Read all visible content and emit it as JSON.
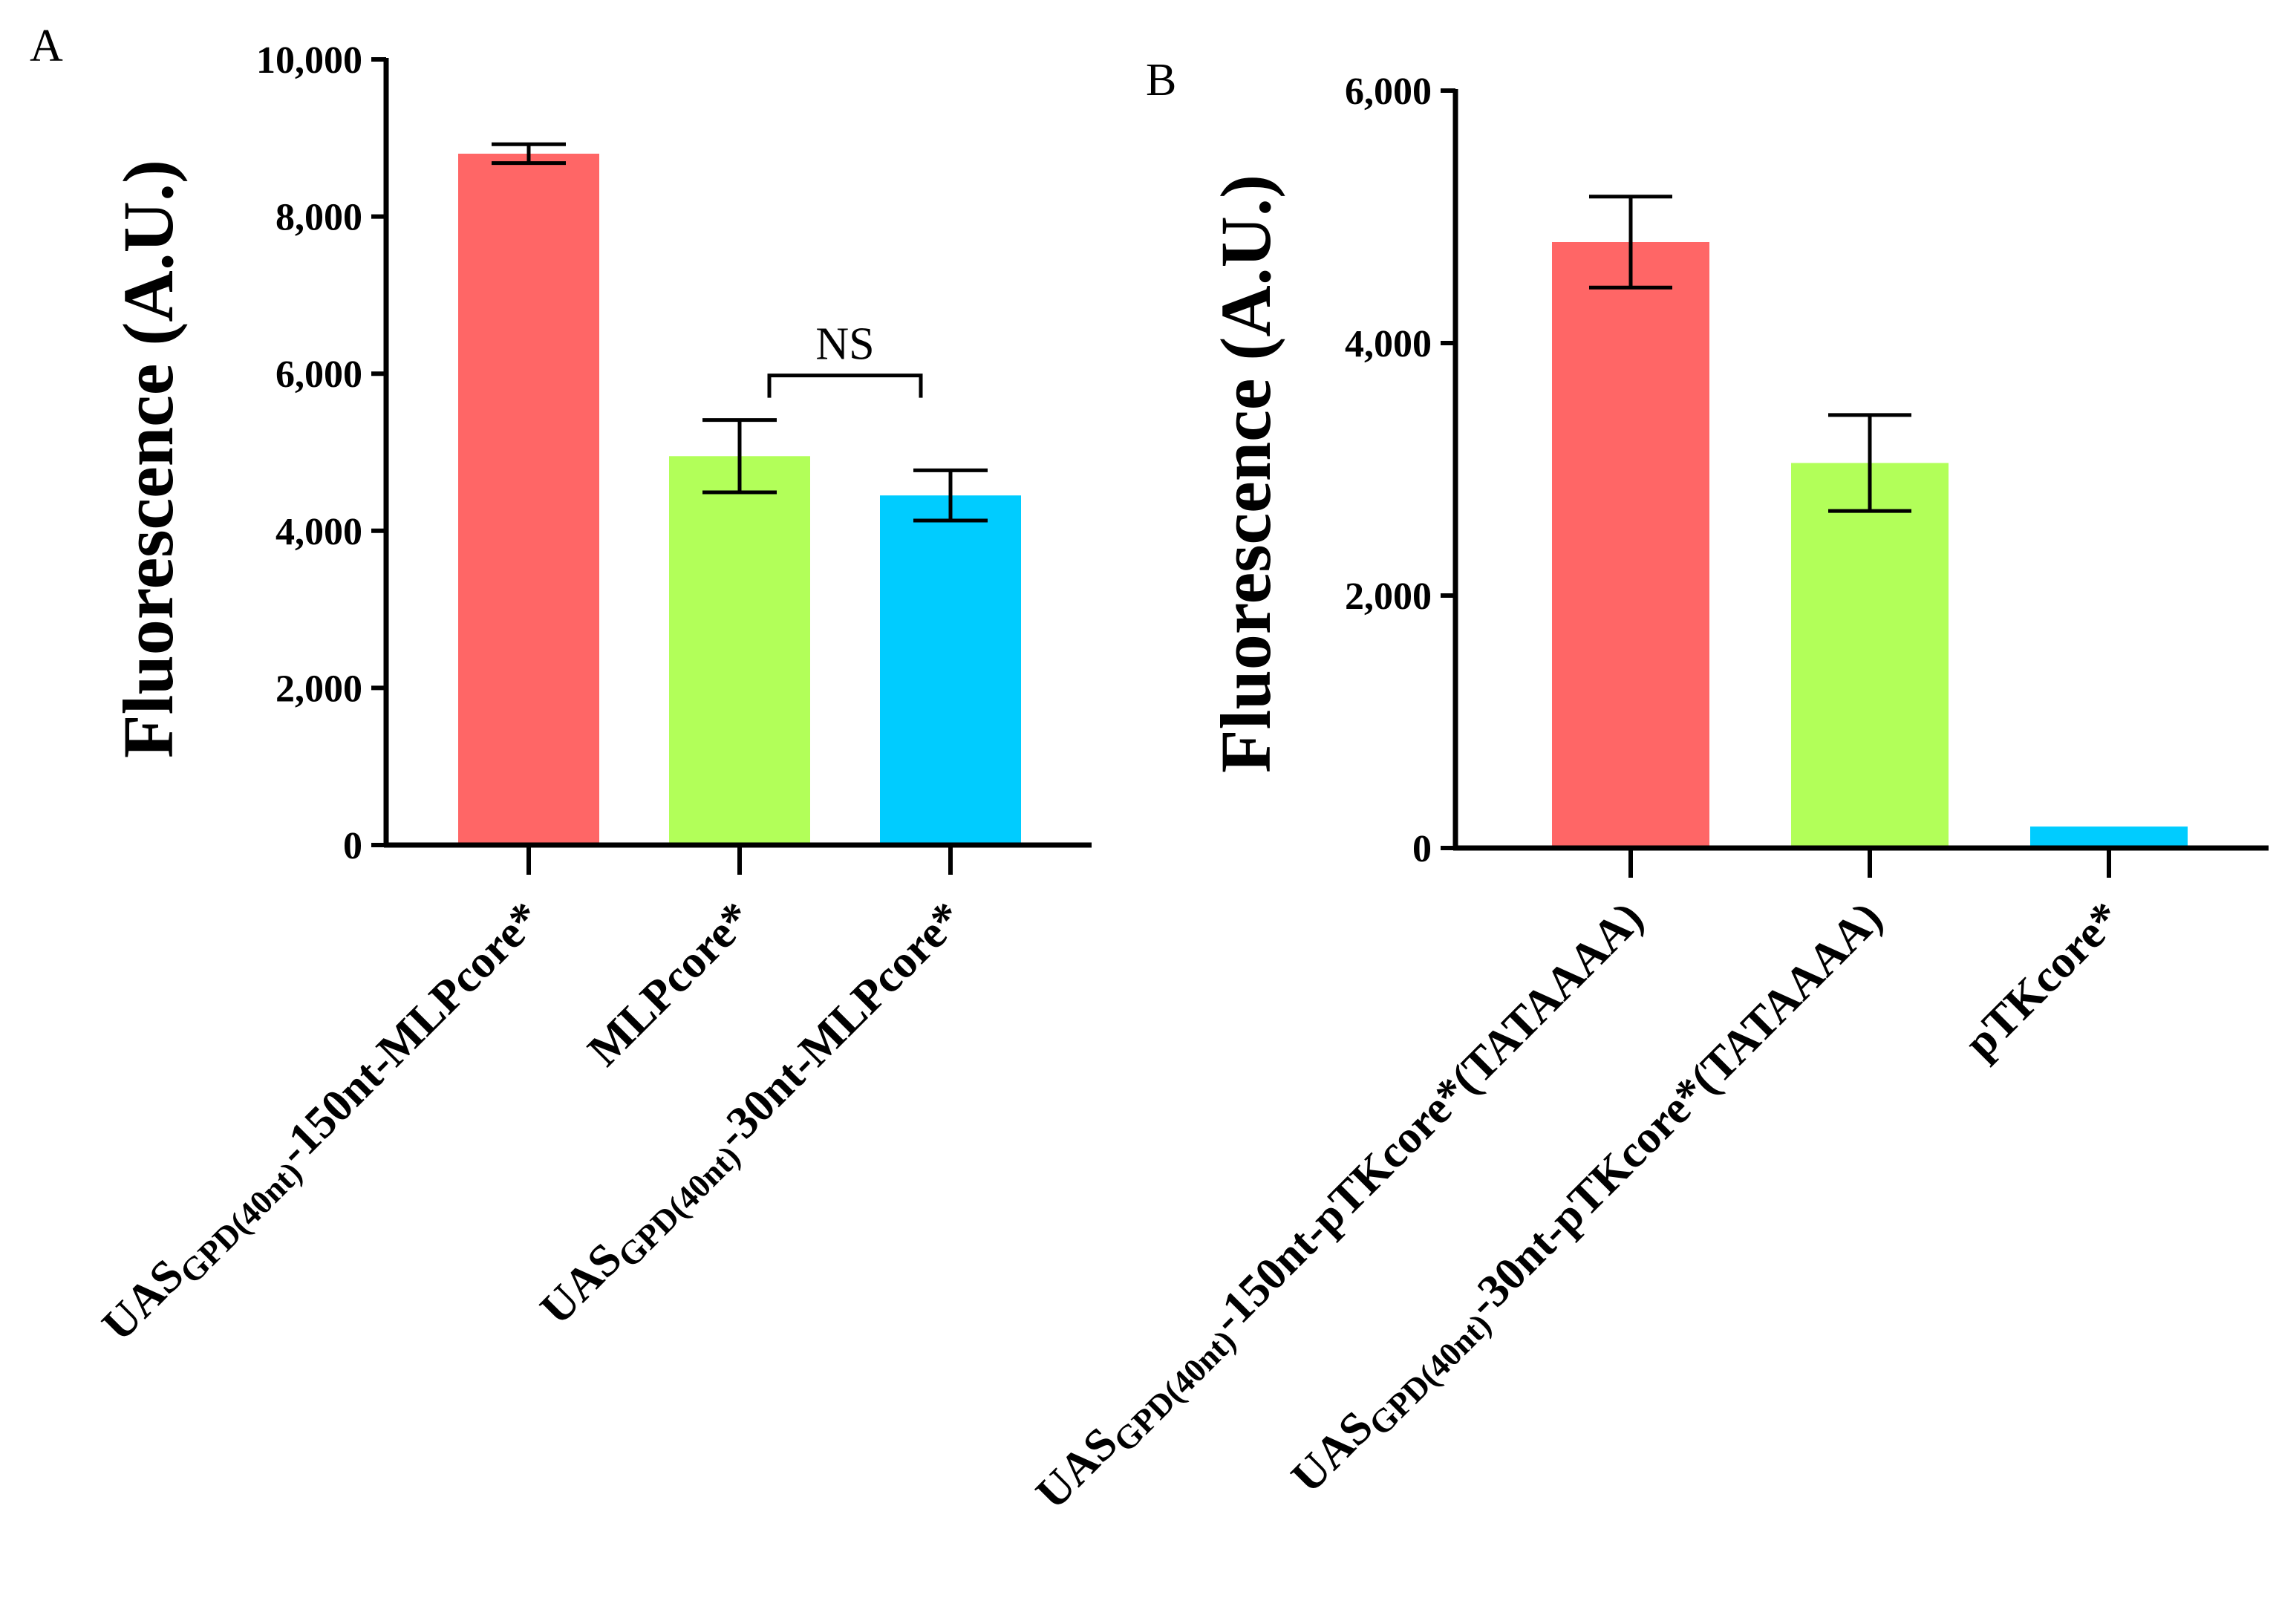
{
  "panels": [
    {
      "label": "A",
      "ylabel": "Fluorescence (A.U.)",
      "annotation": "NS"
    },
    {
      "label": "B",
      "ylabel": "Fluorescence (A.U.)",
      "annotation": ""
    }
  ],
  "chart_data": [
    {
      "type": "bar",
      "panel": "A",
      "title": "",
      "xlabel": "",
      "ylabel": "Fluorescence (A.U.)",
      "ylim": [
        0,
        10000
      ],
      "yticks": [
        0,
        2000,
        4000,
        6000,
        8000,
        10000
      ],
      "ytick_labels": [
        "0",
        "2,000",
        "4,000",
        "6,000",
        "8,000",
        "10,000"
      ],
      "categories": [
        {
          "main": "UAS",
          "sub": "GPD(40nt)",
          "rest": "-150nt-MLPcore*"
        },
        {
          "main": "MLPcore*",
          "sub": "",
          "rest": ""
        },
        {
          "main": "UAS",
          "sub": "GPD(40nt)",
          "rest": "-30nt-MLPcore*"
        }
      ],
      "values": [
        8800,
        4950,
        4450
      ],
      "errors": [
        120,
        460,
        320
      ],
      "colors": [
        "#ff6666",
        "#b2ff59",
        "#00ccff"
      ],
      "significance": [
        {
          "between": [
            1,
            2
          ],
          "label": "NS"
        }
      ]
    },
    {
      "type": "bar",
      "panel": "B",
      "title": "",
      "xlabel": "",
      "ylabel": "Fluorescence (A.U.)",
      "ylim": [
        0,
        6000
      ],
      "yticks": [
        0,
        2000,
        4000,
        6000
      ],
      "ytick_labels": [
        "0",
        "2,000",
        "4,000",
        "6,000"
      ],
      "categories": [
        {
          "main": "UAS",
          "sub": "GPD(40nt)",
          "rest": "-150nt-pTKcore*(TATAAAA)"
        },
        {
          "main": "UAS",
          "sub": "GPD(40nt)",
          "rest": "-30nt-pTKcore*(TATAAAA)"
        },
        {
          "main": "pTKcore*",
          "sub": "",
          "rest": ""
        }
      ],
      "values": [
        4800,
        3050,
        170
      ],
      "errors": [
        360,
        380,
        0
      ],
      "colors": [
        "#ff6666",
        "#b2ff59",
        "#00ccff"
      ],
      "significance": []
    }
  ]
}
